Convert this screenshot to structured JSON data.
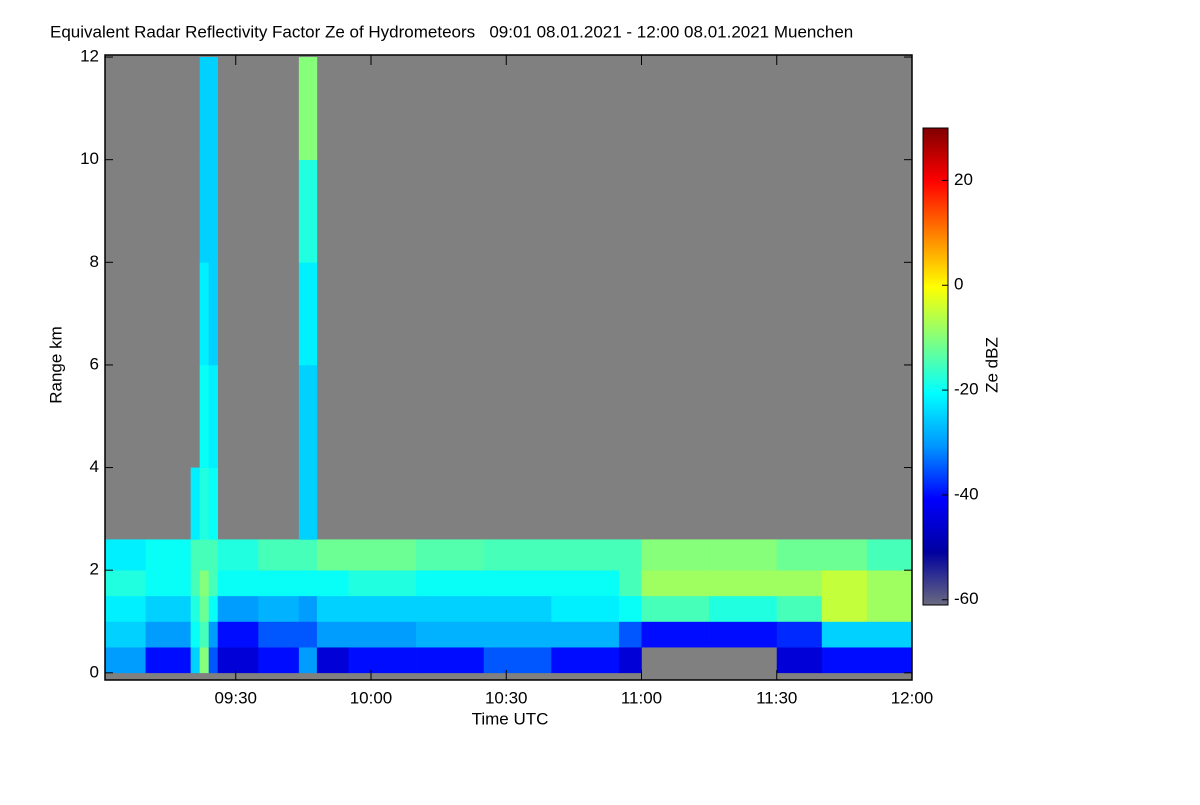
{
  "chart_data": {
    "type": "heatmap",
    "title": "Equivalent Radar Reflectivity Factor Ze of Hydrometeors   09:01 08.01.2021 - 12:00 08.01.2021 Muenchen",
    "x_label": "Time UTC",
    "y_label": "Range km",
    "colorbar_label": "Ze dBZ",
    "x_edges": [
      "09:01",
      "09:10",
      "09:20",
      "09:22",
      "09:24",
      "09:26",
      "09:35",
      "09:44",
      "09:48",
      "09:55",
      "10:10",
      "10:25",
      "10:40",
      "10:55",
      "11:00",
      "11:15",
      "11:30",
      "11:40",
      "11:50",
      "12:00"
    ],
    "y_edges": [
      0,
      0.5,
      1,
      1.5,
      2,
      2.6,
      4,
      6,
      8,
      10,
      12
    ],
    "z": [
      [
        -30,
        -25,
        -22,
        -18,
        -22,
        null,
        null,
        null,
        null,
        null
      ],
      [
        -40,
        -30,
        -25,
        -20,
        -20,
        null,
        null,
        null,
        null,
        null
      ],
      [
        -25,
        -20,
        -18,
        -15,
        -15,
        -22,
        null,
        null,
        null,
        null
      ],
      [
        -10,
        -15,
        -12,
        -10,
        -15,
        -18,
        -20,
        -22,
        -25,
        -25
      ],
      [
        -35,
        -30,
        -20,
        -15,
        -15,
        -20,
        -22,
        -25,
        -25,
        -25
      ],
      [
        -45,
        -40,
        -30,
        -20,
        -18,
        null,
        null,
        null,
        null,
        null
      ],
      [
        -40,
        -35,
        -28,
        -20,
        -15,
        null,
        null,
        null,
        null,
        null
      ],
      [
        -30,
        -35,
        -30,
        -20,
        -15,
        -25,
        -25,
        -22,
        -18,
        -10
      ],
      [
        -45,
        -30,
        -25,
        -20,
        -12,
        null,
        null,
        null,
        null,
        null
      ],
      [
        -40,
        -30,
        -25,
        -18,
        -12,
        null,
        null,
        null,
        null,
        null
      ],
      [
        -40,
        -28,
        -25,
        -20,
        -14,
        null,
        null,
        null,
        null,
        null
      ],
      [
        -35,
        -28,
        -25,
        -20,
        -15,
        null,
        null,
        null,
        null,
        null
      ],
      [
        -40,
        -28,
        -22,
        -20,
        -15,
        null,
        null,
        null,
        null,
        null
      ],
      [
        -45,
        -35,
        -20,
        -15,
        -15,
        null,
        null,
        null,
        null,
        null
      ],
      [
        null,
        -40,
        -15,
        -8,
        -10,
        null,
        null,
        null,
        null,
        null
      ],
      [
        null,
        -40,
        -18,
        -8,
        -10,
        null,
        null,
        null,
        null,
        null
      ],
      [
        -45,
        -38,
        -15,
        -8,
        -12,
        null,
        null,
        null,
        null,
        null
      ],
      [
        -40,
        -25,
        -5,
        -5,
        -12,
        null,
        null,
        null,
        null,
        null
      ],
      [
        -40,
        -25,
        -8,
        -8,
        -15,
        null,
        null,
        null,
        null,
        null
      ]
    ],
    "xlim": [
      "09:01",
      "12:00"
    ],
    "xticks": [
      "09:30",
      "10:00",
      "10:30",
      "11:00",
      "11:30",
      "12:00"
    ],
    "ylim": [
      -0.14,
      12.04
    ],
    "yticks": [
      0,
      2,
      4,
      6,
      8,
      10,
      12
    ],
    "zlim": [
      -61,
      30
    ],
    "zticks": [
      -60,
      -40,
      -20,
      0,
      20
    ],
    "colorscale": [
      "#6a6a80",
      "#0000a0",
      "#0000ff",
      "#0096ff",
      "#00ffff",
      "#80ff80",
      "#ffff00",
      "#ff8000",
      "#ff0000",
      "#800000"
    ],
    "background": "#808080"
  }
}
